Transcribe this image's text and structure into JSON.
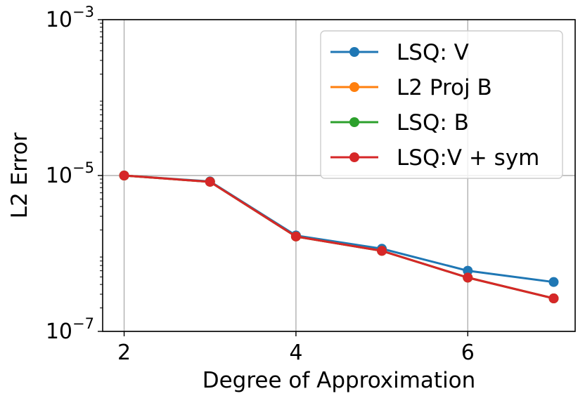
{
  "chart_data": {
    "type": "line",
    "xlabel": "Degree of Approximation",
    "ylabel": "L2 Error",
    "yscale": "log",
    "xlim": [
      1.75,
      7.25
    ],
    "ylim": [
      1e-07,
      0.001
    ],
    "grid": true,
    "legend_position": "top-right",
    "x_ticks": [
      {
        "value": 2,
        "label": "2"
      },
      {
        "value": 4,
        "label": "4"
      },
      {
        "value": 6,
        "label": "6"
      }
    ],
    "y_ticks": [
      {
        "value": 1e-07,
        "base": "10",
        "exp": "−7"
      },
      {
        "value": 1e-05,
        "base": "10",
        "exp": "−5"
      },
      {
        "value": 0.001,
        "base": "10",
        "exp": "−3"
      }
    ],
    "x": [
      2,
      3,
      4,
      5,
      6,
      7
    ],
    "series": [
      {
        "name": "LSQ: V",
        "color": "#1f77b4",
        "values": [
          1e-05,
          8.4e-06,
          1.7e-06,
          1.15e-06,
          6e-07,
          4.3e-07
        ]
      },
      {
        "name": "L2 Proj B",
        "color": "#ff7f0e",
        "values": [
          1e-05,
          8.3e-06,
          1.65e-06,
          1.08e-06,
          4.9e-07,
          2.65e-07
        ]
      },
      {
        "name": "LSQ: B",
        "color": "#2ca02c",
        "values": [
          1e-05,
          8.3e-06,
          1.65e-06,
          1.08e-06,
          4.9e-07,
          2.65e-07
        ]
      },
      {
        "name": "LSQ:V + sym",
        "color": "#d62728",
        "values": [
          1e-05,
          8.3e-06,
          1.65e-06,
          1.08e-06,
          4.9e-07,
          2.65e-07
        ]
      }
    ]
  }
}
